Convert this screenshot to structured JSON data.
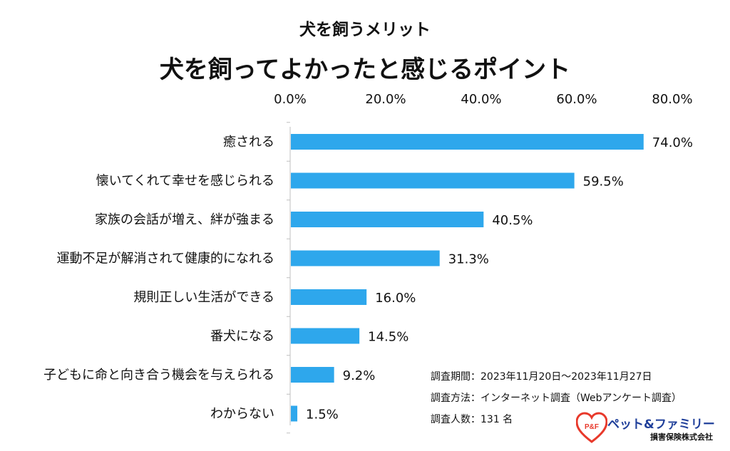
{
  "chart_data": {
    "type": "bar",
    "orientation": "horizontal",
    "title": "犬を飼うメリット",
    "subtitle": "犬を飼ってよかったと感じるポイント",
    "categories": [
      "癒される",
      "懐いてくれて幸せを感じられる",
      "家族の会話が増え、絆が強まる",
      "運動不足が解消されて健康的になれる",
      "規則正しい生活ができる",
      "番犬になる",
      "子どもに命と向き合う機会を与えられる",
      "わからない"
    ],
    "values": [
      74.0,
      59.5,
      40.5,
      31.3,
      16.0,
      14.5,
      9.2,
      1.5
    ],
    "value_labels": [
      "74.0%",
      "59.5%",
      "40.5%",
      "31.3%",
      "16.0%",
      "14.5%",
      "9.2%",
      "1.5%"
    ],
    "xlim": [
      0,
      80
    ],
    "x_ticks": [
      0,
      20,
      40,
      60,
      80
    ],
    "x_tick_labels": [
      "0.0%",
      "20.0%",
      "40.0%",
      "60.0%",
      "80.0%"
    ],
    "axis_position": "top",
    "bar_color": "#2ea7ec",
    "xlabel": "",
    "ylabel": ""
  },
  "notes": {
    "period": "調査期間：2023年11月20日～2023年11月27日",
    "method": "調査方法：インターネット調査（Webアンケート調査）",
    "respondents": "調査人数：131 名"
  },
  "logo": {
    "name": "ペット&ファミリー",
    "company": "損害保険株式会社",
    "mark": "P&F",
    "heart_color": "#e8392b",
    "text_color": "#1f3f9a"
  }
}
